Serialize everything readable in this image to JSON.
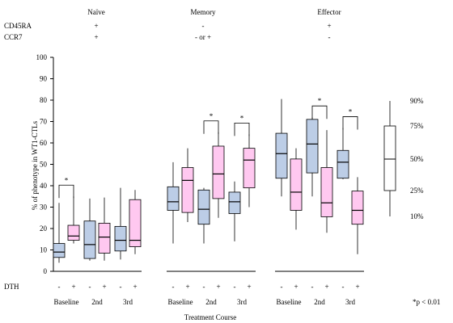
{
  "chart_data": {
    "type": "boxplot",
    "groups": [
      {
        "name": "Naïve",
        "cd45ra": "+",
        "ccr7": "+"
      },
      {
        "name": "Memory",
        "cd45ra": "-",
        "ccr7": "- or +"
      },
      {
        "name": "Effector",
        "cd45ra": "+",
        "ccr7": "-"
      }
    ],
    "marker_labels": {
      "cd45ra": "CD45RA",
      "ccr7": "CCR7"
    },
    "ylabel": "% of phenotype in WT1-CTLs",
    "xlabel": "Treatment Course",
    "dth_label": "DTH",
    "dth_symbols": [
      "-",
      "+"
    ],
    "timepoints": [
      "Baseline",
      "2nd",
      "3rd"
    ],
    "ylim": [
      0,
      100
    ],
    "yticks": [
      0,
      10,
      20,
      30,
      40,
      50,
      60,
      70,
      80,
      90,
      100
    ],
    "boxes": [
      {
        "group": "Naïve",
        "timepoint": "Baseline",
        "dth": "-",
        "min": 4,
        "q1": 6.5,
        "median": 9,
        "q3": 13,
        "max": 32,
        "color": "#bccde6"
      },
      {
        "group": "Naïve",
        "timepoint": "Baseline",
        "dth": "+",
        "min": 13,
        "q1": 14.5,
        "median": 16.5,
        "q3": 21.5,
        "max": 35,
        "color": "#ffc8f0"
      },
      {
        "group": "Naïve",
        "timepoint": "2nd",
        "dth": "-",
        "min": 5,
        "q1": 6,
        "median": 12.5,
        "q3": 23.5,
        "max": 34,
        "color": "#bccde6"
      },
      {
        "group": "Naïve",
        "timepoint": "2nd",
        "dth": "+",
        "min": 5,
        "q1": 8.5,
        "median": 16,
        "q3": 22.5,
        "max": 34.5,
        "color": "#ffc8f0"
      },
      {
        "group": "Naïve",
        "timepoint": "3rd",
        "dth": "-",
        "min": 5.5,
        "q1": 9.5,
        "median": 14.5,
        "q3": 21,
        "max": 39,
        "color": "#bccde6"
      },
      {
        "group": "Naïve",
        "timepoint": "3rd",
        "dth": "+",
        "min": 8,
        "q1": 11.5,
        "median": 14.5,
        "q3": 33.5,
        "max": 38,
        "color": "#ffc8f0"
      },
      {
        "group": "Memory",
        "timepoint": "Baseline",
        "dth": "-",
        "min": 13,
        "q1": 28.5,
        "median": 32.5,
        "q3": 39.5,
        "max": 51,
        "color": "#bccde6"
      },
      {
        "group": "Memory",
        "timepoint": "Baseline",
        "dth": "+",
        "min": 23,
        "q1": 27.5,
        "median": 42.5,
        "q3": 48.5,
        "max": 57.5,
        "color": "#ffc8f0"
      },
      {
        "group": "Memory",
        "timepoint": "2nd",
        "dth": "-",
        "min": 13,
        "q1": 22,
        "median": 29,
        "q3": 38,
        "max": 39,
        "color": "#bccde6"
      },
      {
        "group": "Memory",
        "timepoint": "2nd",
        "dth": "+",
        "min": 25,
        "q1": 34,
        "median": 45.5,
        "q3": 58.5,
        "max": 65,
        "color": "#ffc8f0"
      },
      {
        "group": "Memory",
        "timepoint": "3rd",
        "dth": "-",
        "min": 14,
        "q1": 27,
        "median": 32.5,
        "q3": 37,
        "max": 42,
        "color": "#bccde6"
      },
      {
        "group": "Memory",
        "timepoint": "3rd",
        "dth": "+",
        "min": 30,
        "q1": 39,
        "median": 52,
        "q3": 57.5,
        "max": 64,
        "color": "#ffc8f0"
      },
      {
        "group": "Effector",
        "timepoint": "Baseline",
        "dth": "-",
        "min": 35,
        "q1": 43.5,
        "median": 55,
        "q3": 64.5,
        "max": 80.5,
        "color": "#bccde6"
      },
      {
        "group": "Effector",
        "timepoint": "Baseline",
        "dth": "+",
        "min": 19.5,
        "q1": 28.5,
        "median": 37,
        "q3": 52.5,
        "max": 57.5,
        "color": "#ffc8f0"
      },
      {
        "group": "Effector",
        "timepoint": "2nd",
        "dth": "-",
        "min": 35,
        "q1": 46,
        "median": 59.5,
        "q3": 71,
        "max": 72,
        "color": "#bccde6"
      },
      {
        "group": "Effector",
        "timepoint": "2nd",
        "dth": "+",
        "min": 18,
        "q1": 25.5,
        "median": 32,
        "q3": 48.5,
        "max": 66,
        "color": "#ffc8f0"
      },
      {
        "group": "Effector",
        "timepoint": "3rd",
        "dth": "-",
        "min": 43,
        "q1": 43.5,
        "median": 51,
        "q3": 56.5,
        "max": 67,
        "color": "#bccde6"
      },
      {
        "group": "Effector",
        "timepoint": "3rd",
        "dth": "+",
        "min": 8,
        "q1": 22,
        "median": 28.5,
        "q3": 37.5,
        "max": 44,
        "color": "#ffc8f0"
      }
    ],
    "significance_brackets": [
      {
        "group": "Naïve",
        "timepoint": "Baseline",
        "label": "*"
      },
      {
        "group": "Memory",
        "timepoint": "2nd",
        "label": "*"
      },
      {
        "group": "Memory",
        "timepoint": "3rd",
        "label": "*"
      },
      {
        "group": "Effector",
        "timepoint": "2nd",
        "label": "*"
      },
      {
        "group": "Effector",
        "timepoint": "3rd",
        "label": "*"
      }
    ],
    "legend": {
      "percentile_labels": [
        "90%",
        "75%",
        "50%",
        "25%",
        "10%"
      ]
    },
    "footnote": "*p < 0.01",
    "grid": false
  }
}
